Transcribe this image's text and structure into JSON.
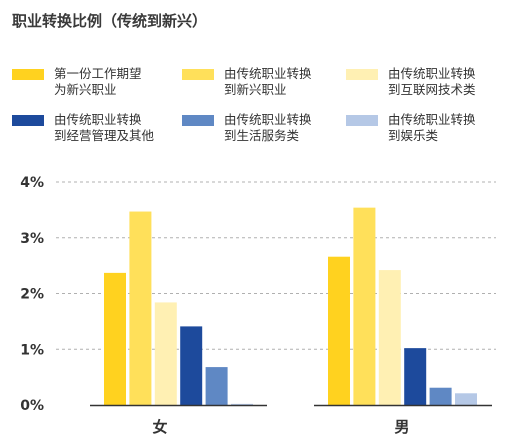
{
  "title": "职业转换比例（传统到新兴）",
  "colors": {
    "background": "#ffffff",
    "grid": "#b0b0b0",
    "baseline": "#333333"
  },
  "chart_data": {
    "type": "bar",
    "title": "职业转换比例（传统到新兴）",
    "categories": [
      "女",
      "男"
    ],
    "y_tick_labels": [
      "0%",
      "1%",
      "2%",
      "3%",
      "4%"
    ],
    "ylim": [
      0,
      4
    ],
    "y_unit": "%",
    "grid": true,
    "legend_position": "top",
    "series": [
      {
        "name": "第一份工作期望\n为新兴职业",
        "color": "#ffd21f",
        "values": [
          2.37,
          2.66
        ]
      },
      {
        "name": "由传统职业转换\n到新兴职业",
        "color": "#ffe05a",
        "values": [
          3.47,
          3.54
        ]
      },
      {
        "name": "由传统职业转换\n到互联网技术类",
        "color": "#fff0b3",
        "values": [
          1.84,
          2.42
        ]
      },
      {
        "name": "由传统职业转换\n到经营管理及其他",
        "color": "#1d4a9c",
        "values": [
          1.41,
          1.02
        ]
      },
      {
        "name": "由传统职业转换\n到生活服务类",
        "color": "#5f88c4",
        "values": [
          0.68,
          0.31
        ]
      },
      {
        "name": "由传统职业转换\n到娱乐类",
        "color": "#b5c8e6",
        "values": [
          0.02,
          0.21
        ]
      }
    ]
  }
}
